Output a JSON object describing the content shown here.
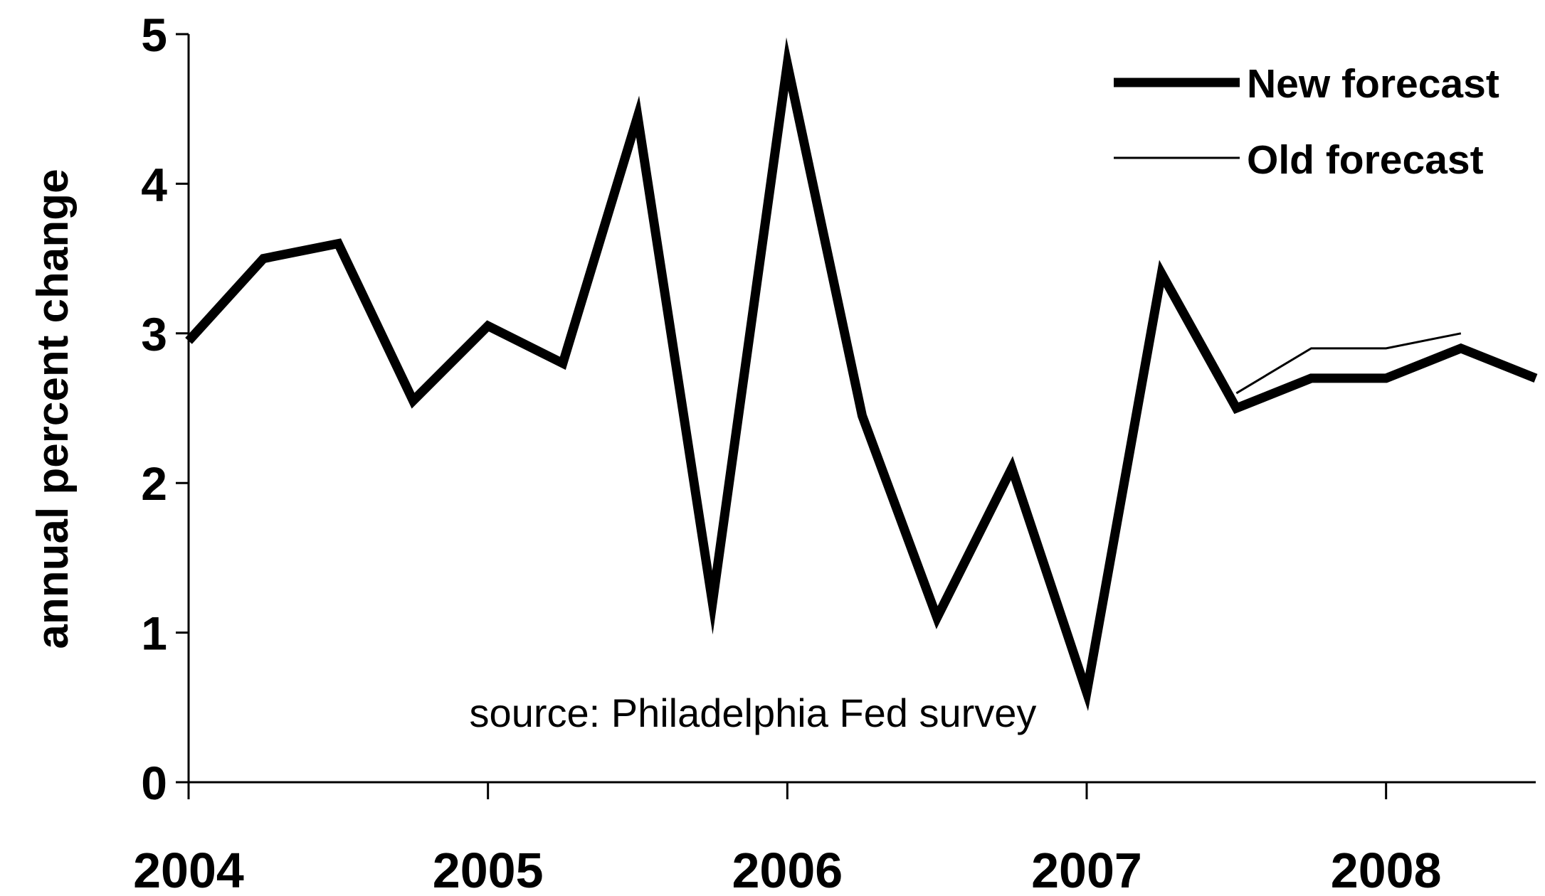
{
  "chart_data": {
    "type": "line",
    "title": "",
    "xlabel": "",
    "ylabel": "annual percent change",
    "annotation": "source: Philadelphia Fed survey",
    "x_tick_labels": [
      "2004",
      "2005",
      "2006",
      "2007",
      "2008"
    ],
    "y_tick_labels": [
      "0",
      "1",
      "2",
      "3",
      "4",
      "5"
    ],
    "xlim": [
      2004.0,
      2008.5
    ],
    "ylim": [
      0,
      5
    ],
    "grid": false,
    "legend_position": "top-right",
    "series": [
      {
        "name": "New forecast",
        "color": "#000000",
        "style": "thick",
        "x": [
          2004.0,
          2004.25,
          2004.5,
          2004.75,
          2005.0,
          2005.25,
          2005.5,
          2005.75,
          2006.0,
          2006.25,
          2006.5,
          2006.75,
          2007.0,
          2007.25,
          2007.5,
          2007.75,
          2008.0,
          2008.25,
          2008.5
        ],
        "y": [
          2.95,
          3.5,
          3.6,
          2.55,
          3.05,
          2.8,
          4.45,
          1.2,
          4.8,
          2.45,
          1.1,
          2.1,
          0.6,
          3.4,
          2.5,
          2.7,
          2.7,
          2.9,
          2.7
        ]
      },
      {
        "name": "Old forecast",
        "color": "#000000",
        "style": "thin",
        "x": [
          2007.5,
          2007.75,
          2008.0,
          2008.25
        ],
        "y": [
          2.6,
          2.9,
          2.9,
          3.0
        ]
      }
    ]
  }
}
